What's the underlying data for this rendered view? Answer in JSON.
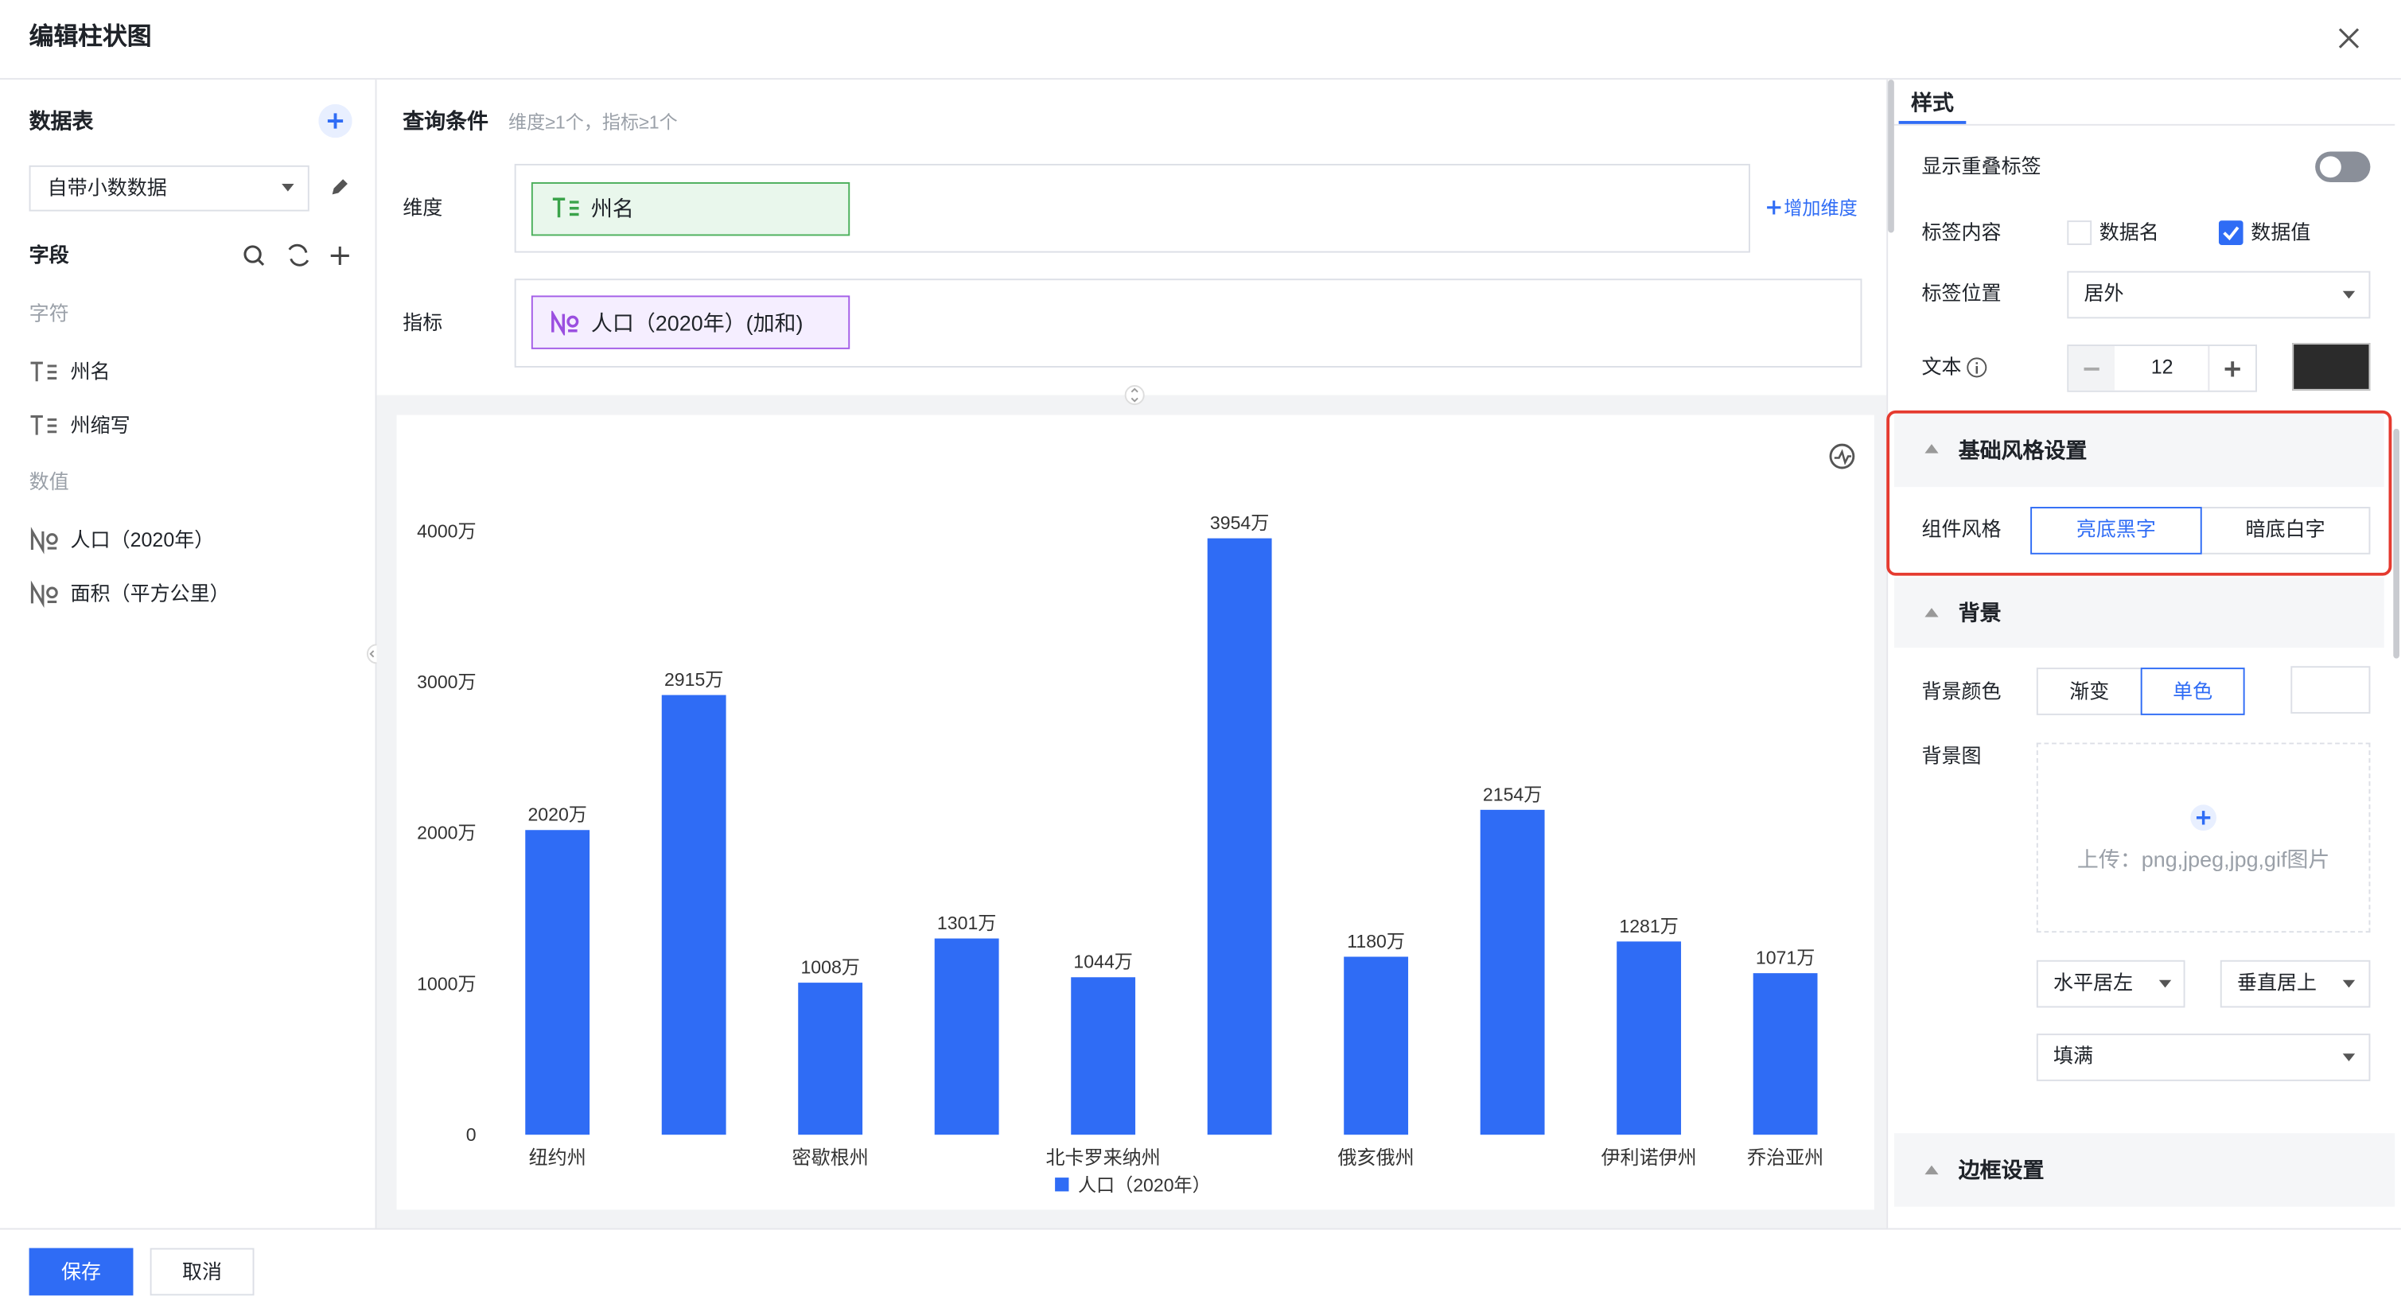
{
  "dialog": {
    "title": "编辑柱状图"
  },
  "data_panel": {
    "title": "数据表",
    "dataset": "自带小数数据",
    "fields_title": "字段",
    "text_group": "字符",
    "text_fields": [
      "州名",
      "州缩写"
    ],
    "number_group": "数值",
    "number_fields": [
      "人口（2020年）",
      "面积（平方公里）"
    ]
  },
  "query": {
    "title": "查询条件",
    "hint": "维度≥1个，指标≥1个",
    "dimension_label": "维度",
    "dimension": "州名",
    "add_dimension": "增加维度",
    "measure_label": "指标",
    "measure": "人口（2020年）(加和)"
  },
  "chart_data": {
    "type": "bar",
    "categories": [
      "纽约州",
      null,
      "密歇根州",
      null,
      "北卡罗来纳州",
      null,
      "俄亥俄州",
      null,
      "伊利诺伊州",
      "乔治亚州"
    ],
    "series": [
      {
        "name": "人口（2020年）",
        "color": "#2f6cf5",
        "values": [
          2020,
          2915,
          1008,
          1301,
          1044,
          3954,
          1180,
          2154,
          1281,
          1071
        ],
        "value_labels": [
          "2020万",
          "2915万",
          "1008万",
          "1301万",
          "1044万",
          "3954万",
          "1180万",
          "2154万",
          "1281万",
          "1071万"
        ]
      }
    ],
    "ylim": [
      0,
      4000
    ],
    "yticks": [
      0,
      {
        "value": 1000,
        "label": "1000万"
      },
      {
        "value": 2000,
        "label": "2000万"
      },
      {
        "value": 3000,
        "label": "3000万"
      },
      {
        "value": 4000,
        "label": "4000万"
      }
    ],
    "grid": false,
    "legend": "bottom"
  },
  "style_panel": {
    "tab": "样式",
    "show_overlap": "显示重叠标签",
    "label_content": "标签内容",
    "label_options": [
      "数据名",
      "数据值"
    ],
    "label_position": "标签位置",
    "position_value": "居外",
    "text": "文本",
    "font_size": 12
  },
  "base_style": {
    "title": "基础风格设置",
    "label": "组件风格",
    "options": [
      "亮底黑字",
      "暗底白字"
    ]
  },
  "background": {
    "title": "背景",
    "color_label": "背景颜色",
    "color_options": [
      "渐变",
      "单色"
    ],
    "image_label": "背景图",
    "upload_hint": "上传：png,jpeg,jpg,gif图片",
    "h_align": "水平居左",
    "v_align": "垂直居上",
    "fill": "填满"
  },
  "border": {
    "title": "边框设置"
  },
  "footer": {
    "save": "保存",
    "cancel": "取消"
  }
}
